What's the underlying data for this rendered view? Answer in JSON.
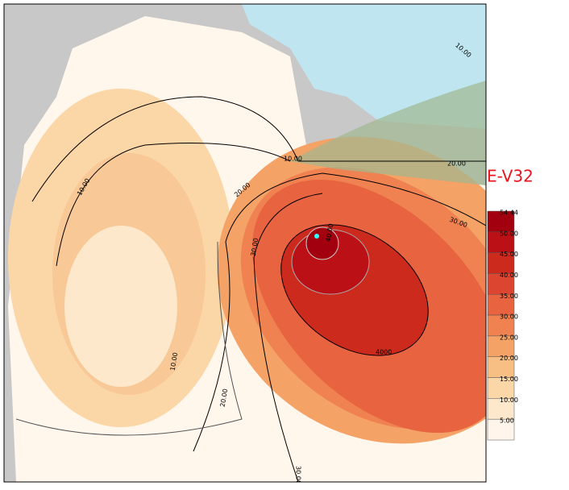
{
  "title": "E-V32",
  "legend": {
    "labels": [
      "54.44",
      "50.00",
      "45.00",
      "40.00",
      "35.00",
      "30.00",
      "25.00",
      "20.00",
      "15.00",
      "10.00",
      "5.00"
    ],
    "colors": [
      "#a3000f",
      "#bb1015",
      "#cc2a1c",
      "#dc4530",
      "#e8633f",
      "#ef8250",
      "#f4a266",
      "#f8bf85",
      "#fbd6a7",
      "#fde8cb",
      "#fff5ea"
    ]
  },
  "contour_labels": [
    "10.00",
    "20.00",
    "30.00",
    "40.00",
    "4000",
    "20.00",
    "30.00",
    "20.00",
    "10.00",
    "10.00",
    "10.00",
    "30.00"
  ]
}
